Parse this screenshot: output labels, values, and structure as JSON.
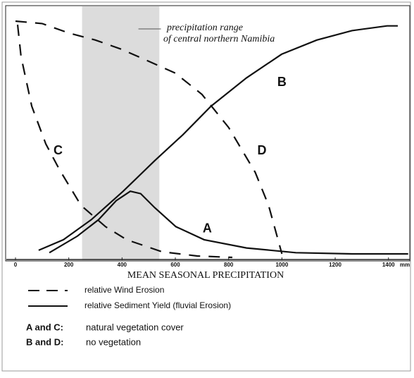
{
  "chart_data": {
    "type": "line",
    "xlabel": "MEAN SEASONAL PRECIPITATION",
    "x_unit": "mm",
    "xlim": [
      0,
      1480
    ],
    "ylim": [
      0,
      100
    ],
    "xticks": [
      0,
      200,
      400,
      600,
      800,
      1000,
      1200,
      1400
    ],
    "shaded_range": [
      250,
      540
    ],
    "shaded_label": [
      "precipitation range",
      "of central northern Namibia"
    ],
    "series": [
      {
        "name": "A",
        "color": "#111111",
        "dashed": false,
        "x": [
          127,
          232,
          312,
          378,
          431,
          470,
          523,
          602,
          708,
          867,
          1052,
          1263,
          1474
        ],
        "values": [
          2,
          9,
          16,
          24,
          28,
          27,
          21,
          13,
          7.5,
          4,
          2,
          1.5,
          1.5
        ]
      },
      {
        "name": "B",
        "color": "#111111",
        "dashed": false,
        "x": [
          87,
          180,
          285,
          404,
          523,
          629,
          734,
          867,
          999,
          1131,
          1263,
          1395,
          1435
        ],
        "values": [
          3,
          7.5,
          16,
          28,
          41,
          52,
          64,
          76,
          86,
          92,
          96,
          98,
          98
        ]
      },
      {
        "name": "C",
        "color": "#111111",
        "dashed": true,
        "x": [
          8,
          21,
          61,
          114,
          166,
          246,
          338,
          417,
          550,
          682,
          814
        ],
        "values": [
          98.5,
          85,
          64,
          48,
          37,
          22,
          13,
          7.5,
          2.4,
          0.6,
          0
        ]
      },
      {
        "name": "D",
        "color": "#111111",
        "dashed": true,
        "x": [
          0,
          100,
          200,
          300,
          400,
          500,
          600,
          700,
          800,
          900,
          950,
          1000
        ],
        "values": [
          100,
          99,
          95,
          92,
          88,
          83,
          78,
          69,
          55,
          36,
          22,
          1.5
        ]
      }
    ],
    "label_positions": {
      "A": [
        720,
        12
      ],
      "B": [
        1000,
        74
      ],
      "C": [
        160,
        45
      ],
      "D": [
        925,
        45
      ]
    },
    "legend": [
      {
        "dashed": true,
        "label": "relative Wind Erosion"
      },
      {
        "dashed": false,
        "label": "relative Sediment Yield (fluvial Erosion)"
      }
    ],
    "key": [
      {
        "term": "A and C:",
        "text": "natural vegetation cover"
      },
      {
        "term": "B and D:",
        "text": "no vegetation"
      }
    ]
  }
}
